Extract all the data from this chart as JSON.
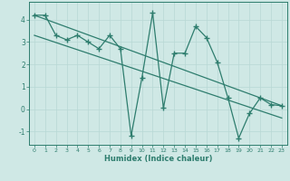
{
  "xlabel": "Humidex (Indice chaleur)",
  "ylabel": "",
  "x_values": [
    0,
    1,
    2,
    3,
    4,
    5,
    6,
    7,
    8,
    9,
    10,
    11,
    12,
    13,
    14,
    15,
    16,
    17,
    18,
    19,
    20,
    21,
    22,
    23
  ],
  "y_main": [
    4.2,
    4.2,
    3.3,
    3.1,
    3.3,
    3.0,
    2.7,
    3.3,
    2.7,
    -1.2,
    1.4,
    4.3,
    0.05,
    2.5,
    2.5,
    3.7,
    3.2,
    2.1,
    0.5,
    -1.3,
    -0.2,
    0.5,
    0.2,
    0.15
  ],
  "line_color": "#2e7d6e",
  "bg_color": "#cfe8e5",
  "grid_color": "#b8d8d4",
  "axis_color": "#2e7d6e",
  "xlim": [
    -0.5,
    23.5
  ],
  "ylim": [
    -1.6,
    4.8
  ],
  "yticks": [
    -1,
    0,
    1,
    2,
    3,
    4
  ],
  "xticks": [
    0,
    1,
    2,
    3,
    4,
    5,
    6,
    7,
    8,
    9,
    10,
    11,
    12,
    13,
    14,
    15,
    16,
    17,
    18,
    19,
    20,
    21,
    22,
    23
  ],
  "marker": "+",
  "markersize": 4,
  "markeredgewidth": 1.0,
  "linewidth": 0.9,
  "trend_line1_start": 4.2,
  "trend_line1_end": 0.15,
  "trend_line2_start": 3.3,
  "trend_line2_end": -0.4
}
